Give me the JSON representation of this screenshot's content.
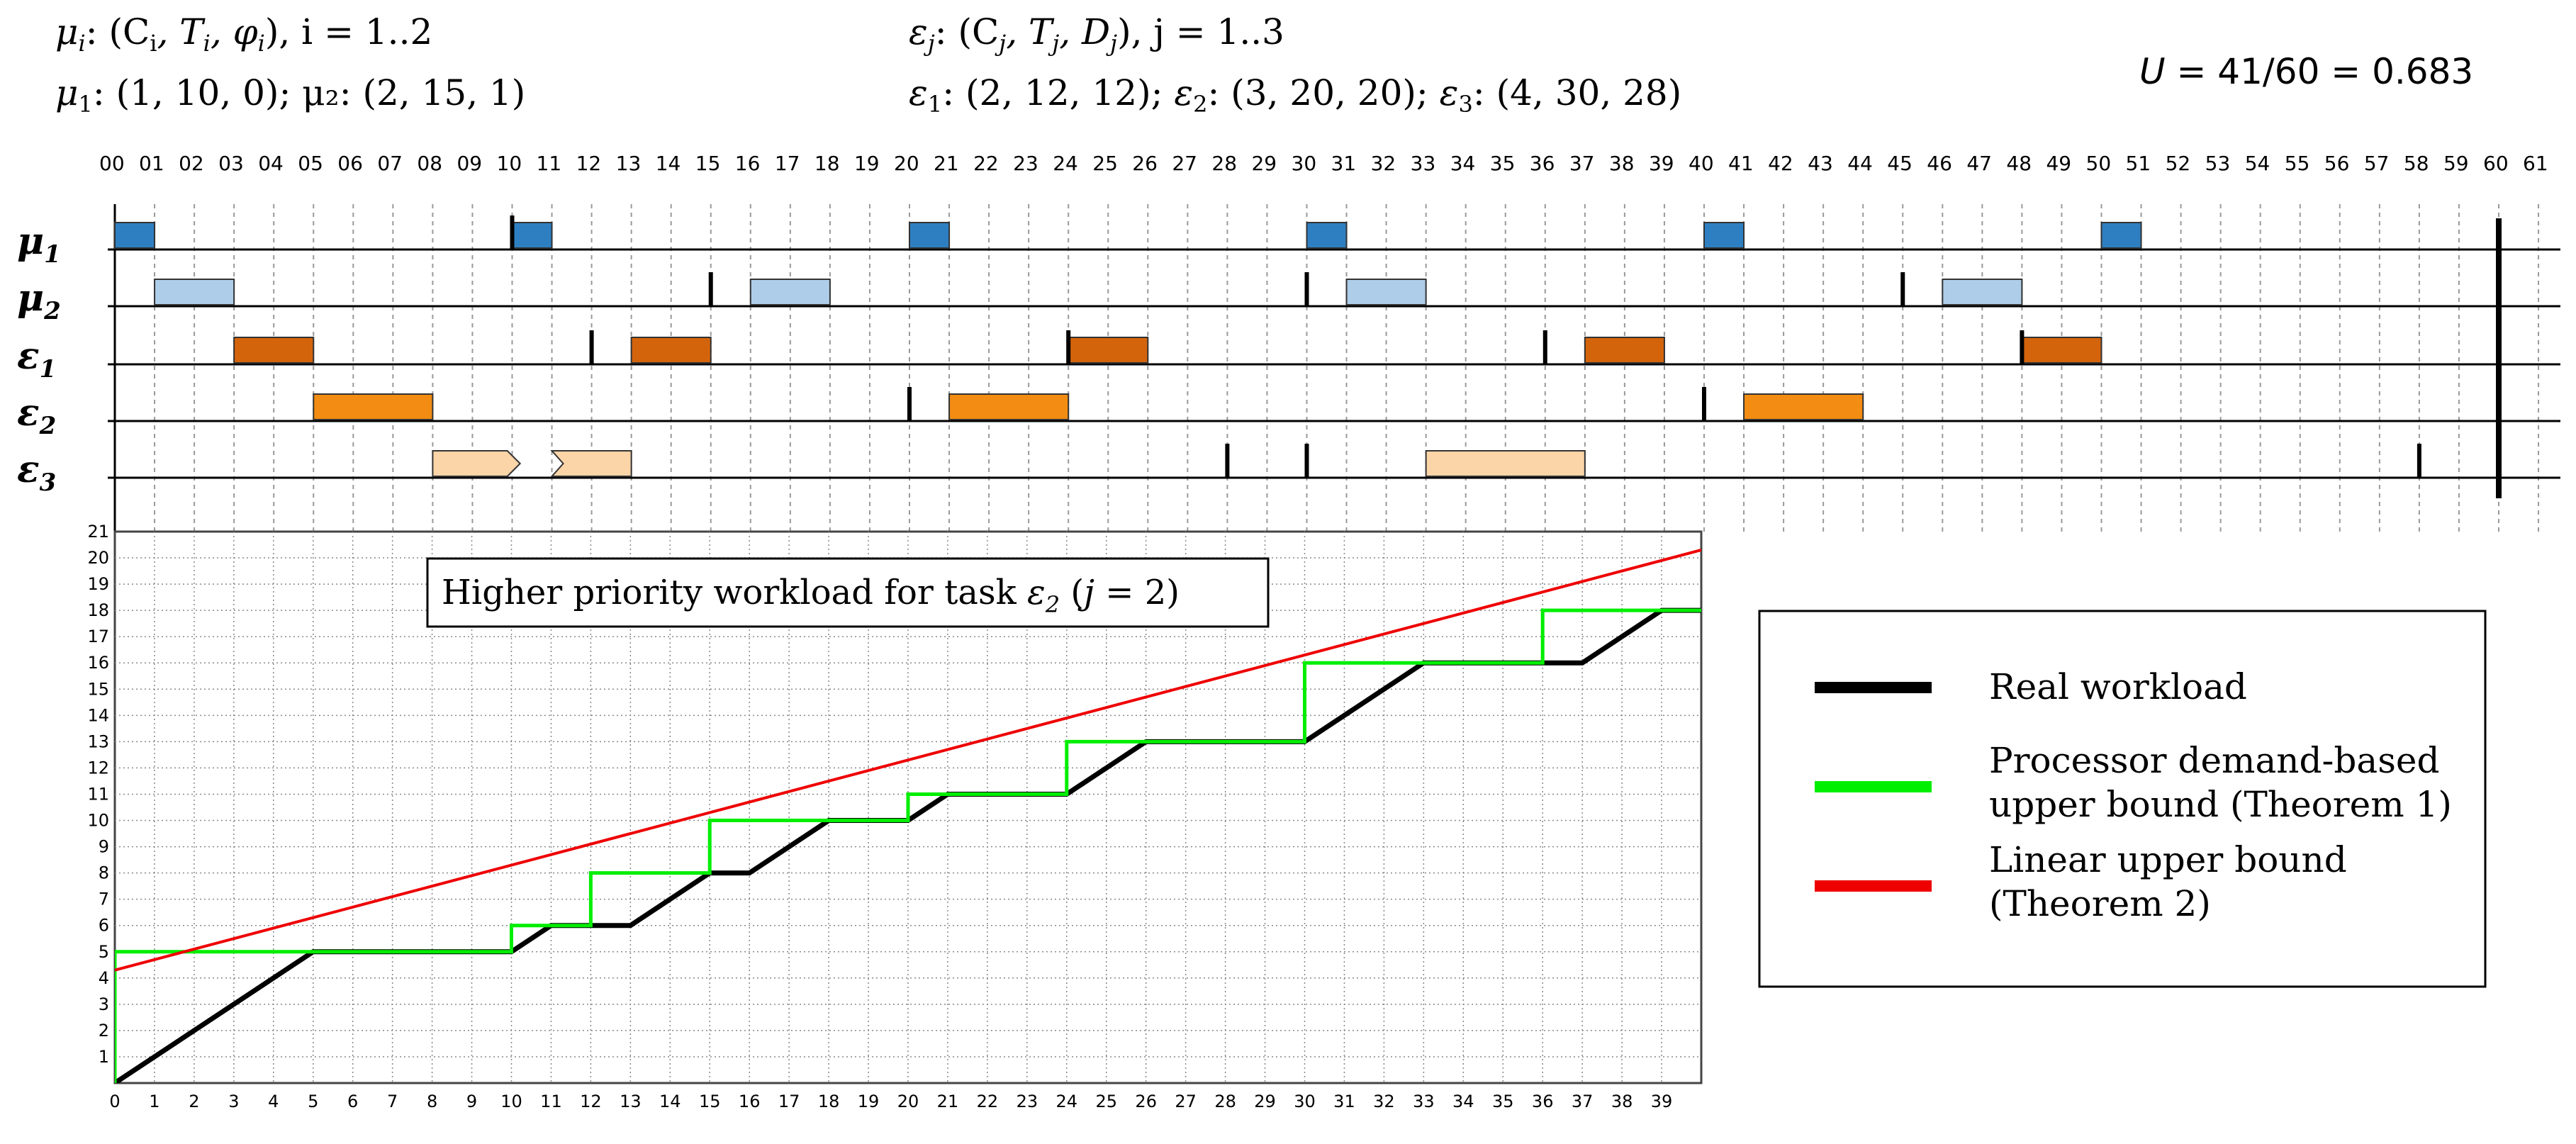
{
  "header": {
    "mu_def_left": "μ",
    "mu_def_sub": "i",
    "mu_def_text": ": (C",
    "mu_def_C_sub": "i",
    "mu_def_T": ", T",
    "mu_def_T_sub": "i",
    "mu_def_phi": ", φ",
    "mu_def_phi_sub": "i",
    "mu_def_tail": "), i = 1..2",
    "mu_values": "(1, 10, 0); μ₂: (2, 15, 1)",
    "eps_def_left": "ε",
    "eps_def_sub": "j",
    "eps_def_text": ": (C",
    "eps_def_C_sub": "j",
    "eps_def_T": ", T",
    "eps_def_T_sub": "j",
    "eps_def_D": ", D",
    "eps_def_D_sub": "j",
    "eps_def_tail": "), j = 1..3",
    "utilization_label": "U",
    "utilization_value": " = 41/60 = 0.683"
  },
  "timeline": {
    "tick_labels": [
      "00",
      "01",
      "02",
      "03",
      "04",
      "05",
      "06",
      "07",
      "08",
      "09",
      "10",
      "11",
      "12",
      "13",
      "14",
      "15",
      "16",
      "17",
      "18",
      "19",
      "20",
      "21",
      "22",
      "23",
      "24",
      "25",
      "26",
      "27",
      "28",
      "29",
      "30",
      "31",
      "32",
      "33",
      "34",
      "35",
      "36",
      "37",
      "38",
      "39",
      "40",
      "41",
      "42",
      "43",
      "44",
      "45",
      "46",
      "47",
      "48",
      "49",
      "50",
      "51",
      "52",
      "53",
      "54",
      "55",
      "56",
      "57",
      "58",
      "59",
      "60",
      "61"
    ],
    "rows": [
      {
        "symbol": "μ",
        "sub": "1",
        "color": "#2e7fc1"
      },
      {
        "symbol": "μ",
        "sub": "2",
        "color": "#aecde8"
      },
      {
        "symbol": "ε",
        "sub": "1",
        "color": "#d4640c"
      },
      {
        "symbol": "ε",
        "sub": "2",
        "color": "#f28c12"
      },
      {
        "symbol": "ε",
        "sub": "3",
        "color": "#fbd4a8"
      }
    ],
    "executions": [
      {
        "row": 0,
        "start": 0,
        "end": 1
      },
      {
        "row": 0,
        "start": 10,
        "end": 11
      },
      {
        "row": 0,
        "start": 20,
        "end": 21
      },
      {
        "row": 0,
        "start": 30,
        "end": 31
      },
      {
        "row": 0,
        "start": 40,
        "end": 41
      },
      {
        "row": 0,
        "start": 50,
        "end": 51
      },
      {
        "row": 1,
        "start": 1,
        "end": 3
      },
      {
        "row": 1,
        "start": 16,
        "end": 18
      },
      {
        "row": 1,
        "start": 31,
        "end": 33
      },
      {
        "row": 1,
        "start": 46,
        "end": 48
      },
      {
        "row": 2,
        "start": 3,
        "end": 5
      },
      {
        "row": 2,
        "start": 13,
        "end": 15
      },
      {
        "row": 2,
        "start": 24,
        "end": 26
      },
      {
        "row": 2,
        "start": 37,
        "end": 39
      },
      {
        "row": 2,
        "start": 48,
        "end": 50
      },
      {
        "row": 3,
        "start": 5,
        "end": 8
      },
      {
        "row": 3,
        "start": 21,
        "end": 24
      },
      {
        "row": 3,
        "start": 41,
        "end": 44
      },
      {
        "row": 4,
        "start": 8,
        "end": 10.2,
        "shape": "arrow-out"
      },
      {
        "row": 4,
        "start": 11,
        "end": 13,
        "shape": "notch-in"
      },
      {
        "row": 4,
        "start": 33,
        "end": 37
      }
    ],
    "release_marks": [
      {
        "row": 0,
        "t": 10
      },
      {
        "row": 1,
        "t": 15
      },
      {
        "row": 1,
        "t": 30
      },
      {
        "row": 1,
        "t": 45
      },
      {
        "row": 2,
        "t": 12
      },
      {
        "row": 2,
        "t": 24
      },
      {
        "row": 2,
        "t": 36
      },
      {
        "row": 2,
        "t": 48
      },
      {
        "row": 3,
        "t": 20
      },
      {
        "row": 3,
        "t": 40
      },
      {
        "row": 4,
        "t": 28
      },
      {
        "row": 4,
        "t": 30
      },
      {
        "row": 4,
        "t": 58
      }
    ],
    "hyperperiod": 60
  },
  "chart_data": {
    "type": "line",
    "title": "Higher priority workload for task ε₂ (j = 2)",
    "title_text": "Higher priority workload for task ",
    "title_eps": "ε",
    "title_eps_sub": "2",
    "title_paren_open": " (",
    "title_j": "j",
    "title_paren_close": " = 2)",
    "xlim": [
      0,
      40
    ],
    "ylim": [
      0,
      21
    ],
    "x_ticks": [
      0,
      1,
      2,
      3,
      4,
      5,
      6,
      7,
      8,
      9,
      10,
      11,
      12,
      13,
      14,
      15,
      16,
      17,
      18,
      19,
      20,
      21,
      22,
      23,
      24,
      25,
      26,
      27,
      28,
      29,
      30,
      31,
      32,
      33,
      34,
      35,
      36,
      37,
      38,
      39
    ],
    "y_ticks": [
      1,
      2,
      3,
      4,
      5,
      6,
      7,
      8,
      9,
      10,
      11,
      12,
      13,
      14,
      15,
      16,
      17,
      18,
      19,
      20,
      21
    ],
    "grid": true,
    "legend_position": "right",
    "series": [
      {
        "name": "Real workload",
        "color": "#000000",
        "x": [
          0,
          5,
          10,
          11,
          12,
          13,
          15,
          16,
          18,
          20,
          21,
          24,
          26,
          30,
          33,
          37,
          39,
          40
        ],
        "y": [
          0,
          5,
          5,
          6,
          6,
          6,
          8,
          8,
          10,
          10,
          11,
          11,
          13,
          13,
          16,
          16,
          18,
          18
        ]
      },
      {
        "name": "Processor demand-based upper bound (Theorem 1)",
        "color": "#00ee00",
        "x": [
          0,
          0,
          10,
          10,
          12,
          12,
          15,
          15,
          20,
          20,
          24,
          24,
          30,
          30,
          36,
          36,
          40
        ],
        "y": [
          0,
          5,
          5,
          6,
          6,
          8,
          8,
          10,
          10,
          11,
          11,
          13,
          13,
          16,
          16,
          18,
          18
        ]
      },
      {
        "name": "Linear upper bound (Theorem 2)",
        "color": "#ee0000",
        "x": [
          0,
          40
        ],
        "y": [
          4.3,
          20.3
        ]
      }
    ],
    "legend": [
      {
        "label_line1": "Real workload",
        "label_line2": "",
        "color": "#000000"
      },
      {
        "label_line1": "Processor demand-based",
        "label_line2": "upper bound (Theorem 1)",
        "color": "#00ee00"
      },
      {
        "label_line1": "Linear upper bound",
        "label_line2": "(Theorem 2)",
        "color": "#ee0000"
      }
    ]
  }
}
